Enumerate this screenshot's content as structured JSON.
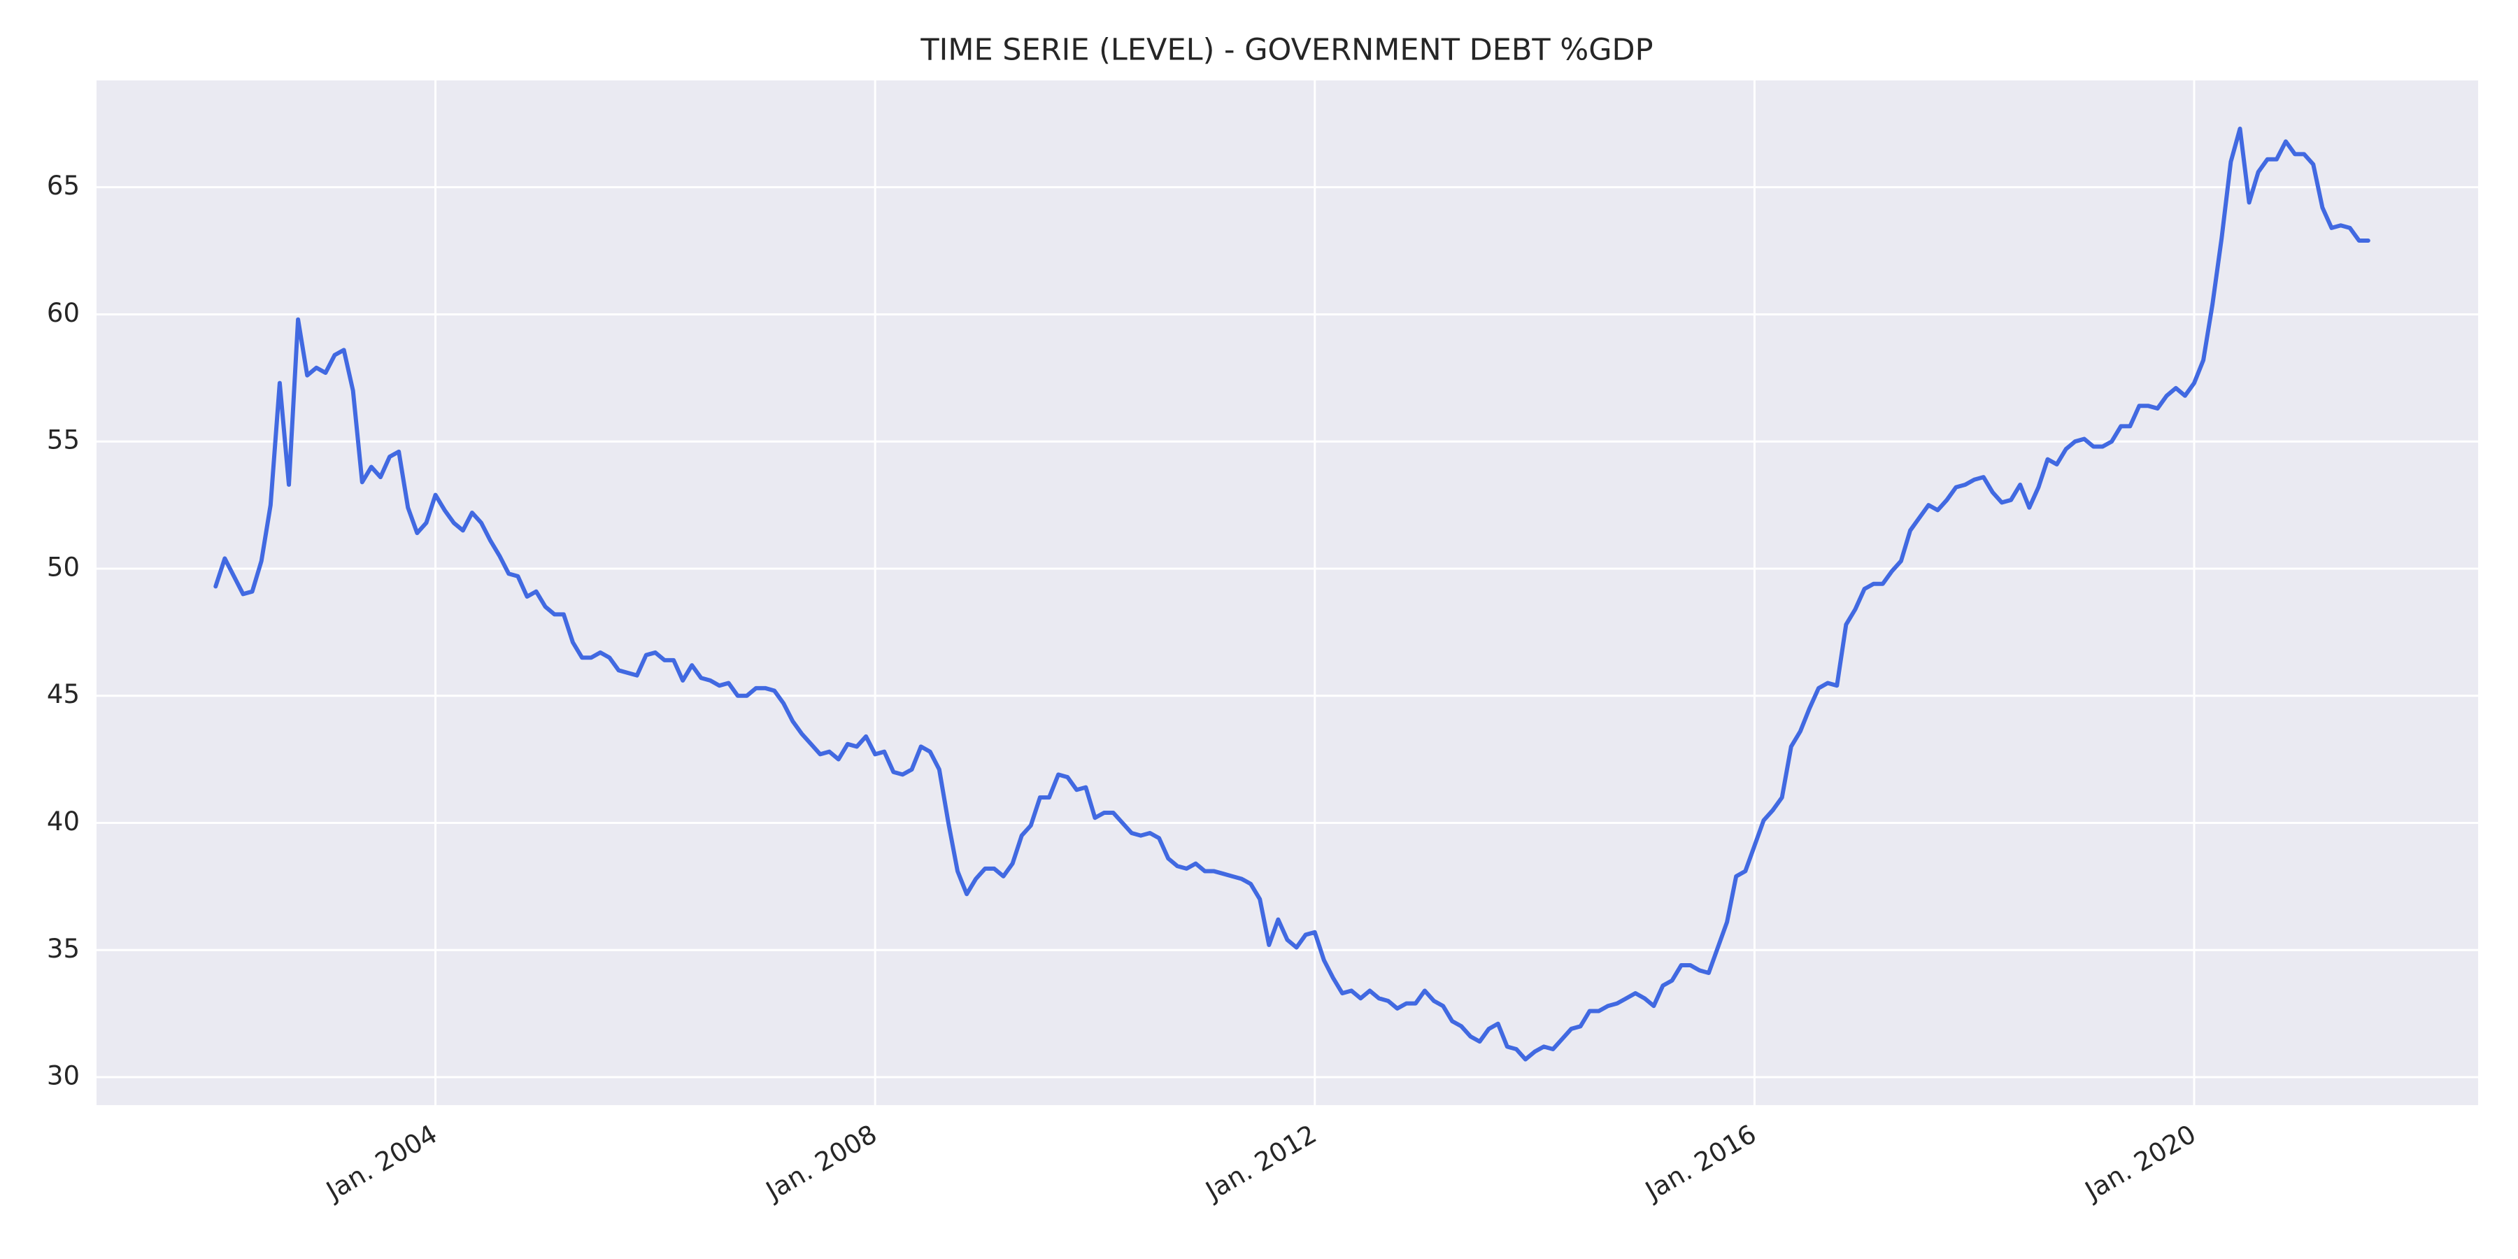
{
  "chart_data": {
    "type": "line",
    "title": "TIME SERIE (LEVEL) - GOVERNMENT DEBT %GDP",
    "color": "#4169e1",
    "grid": true,
    "xlim": [
      "2000-12",
      "2022-08"
    ],
    "ylim": [
      28.9,
      69.2
    ],
    "yticks": [
      30,
      35,
      40,
      45,
      50,
      55,
      60,
      65
    ],
    "xticks": [
      {
        "value": "2004-01",
        "label": "Jan. 2004"
      },
      {
        "value": "2008-01",
        "label": "Jan. 2008"
      },
      {
        "value": "2012-01",
        "label": "Jan. 2012"
      },
      {
        "value": "2016-01",
        "label": "Jan. 2016"
      },
      {
        "value": "2020-01",
        "label": "Jan. 2020"
      }
    ],
    "x": [
      "2002-01",
      "2002-02",
      "2002-03",
      "2002-04",
      "2002-05",
      "2002-06",
      "2002-07",
      "2002-08",
      "2002-09",
      "2002-10",
      "2002-11",
      "2002-12",
      "2003-01",
      "2003-02",
      "2003-03",
      "2003-04",
      "2003-05",
      "2003-06",
      "2003-07",
      "2003-08",
      "2003-09",
      "2003-10",
      "2003-11",
      "2003-12",
      "2004-01",
      "2004-02",
      "2004-03",
      "2004-04",
      "2004-05",
      "2004-06",
      "2004-07",
      "2004-08",
      "2004-09",
      "2004-10",
      "2004-11",
      "2004-12",
      "2005-01",
      "2005-02",
      "2005-03",
      "2005-04",
      "2005-05",
      "2005-06",
      "2005-07",
      "2005-08",
      "2005-09",
      "2005-10",
      "2005-11",
      "2005-12",
      "2006-01",
      "2006-02",
      "2006-03",
      "2006-04",
      "2006-05",
      "2006-06",
      "2006-07",
      "2006-08",
      "2006-09",
      "2006-10",
      "2006-11",
      "2006-12",
      "2007-01",
      "2007-02",
      "2007-03",
      "2007-04",
      "2007-05",
      "2007-06",
      "2007-07",
      "2007-08",
      "2007-09",
      "2007-10",
      "2007-11",
      "2007-12",
      "2008-01",
      "2008-02",
      "2008-03",
      "2008-04",
      "2008-05",
      "2008-06",
      "2008-07",
      "2008-08",
      "2008-09",
      "2008-10",
      "2008-11",
      "2008-12",
      "2009-01",
      "2009-02",
      "2009-03",
      "2009-04",
      "2009-05",
      "2009-06",
      "2009-07",
      "2009-08",
      "2009-09",
      "2009-10",
      "2009-11",
      "2009-12",
      "2010-01",
      "2010-02",
      "2010-03",
      "2010-04",
      "2010-05",
      "2010-06",
      "2010-07",
      "2010-08",
      "2010-09",
      "2010-10",
      "2010-11",
      "2010-12",
      "2011-01",
      "2011-02",
      "2011-03",
      "2011-04",
      "2011-05",
      "2011-06",
      "2011-07",
      "2011-08",
      "2011-09",
      "2011-10",
      "2011-11",
      "2011-12",
      "2012-01",
      "2012-02",
      "2012-03",
      "2012-04",
      "2012-05",
      "2012-06",
      "2012-07",
      "2012-08",
      "2012-09",
      "2012-10",
      "2012-11",
      "2012-12",
      "2013-01",
      "2013-02",
      "2013-03",
      "2013-04",
      "2013-05",
      "2013-06",
      "2013-07",
      "2013-08",
      "2013-09",
      "2013-10",
      "2013-11",
      "2013-12",
      "2014-01",
      "2014-02",
      "2014-03",
      "2014-04",
      "2014-05",
      "2014-06",
      "2014-07",
      "2014-08",
      "2014-09",
      "2014-10",
      "2014-11",
      "2014-12",
      "2015-01",
      "2015-02",
      "2015-03",
      "2015-04",
      "2015-05",
      "2015-06",
      "2015-07",
      "2015-08",
      "2015-09",
      "2015-10",
      "2015-11",
      "2015-12",
      "2016-01",
      "2016-02",
      "2016-03",
      "2016-04",
      "2016-05",
      "2016-06",
      "2016-07",
      "2016-08",
      "2016-09",
      "2016-10",
      "2016-11",
      "2016-12",
      "2017-01",
      "2017-02",
      "2017-03",
      "2017-04",
      "2017-05",
      "2017-06",
      "2017-07",
      "2017-08",
      "2017-09",
      "2017-10",
      "2017-11",
      "2017-12",
      "2018-01",
      "2018-02",
      "2018-03",
      "2018-04",
      "2018-05",
      "2018-06",
      "2018-07",
      "2018-08",
      "2018-09",
      "2018-10",
      "2018-11",
      "2018-12",
      "2019-01",
      "2019-02",
      "2019-03",
      "2019-04",
      "2019-05",
      "2019-06",
      "2019-07",
      "2019-08",
      "2019-09",
      "2019-10",
      "2019-11",
      "2019-12",
      "2020-01",
      "2020-02",
      "2020-03",
      "2020-04",
      "2020-05",
      "2020-06",
      "2020-07",
      "2020-08",
      "2020-09",
      "2020-10",
      "2020-11",
      "2020-12",
      "2021-01",
      "2021-02",
      "2021-03",
      "2021-04",
      "2021-05",
      "2021-06",
      "2021-07",
      "2021-08"
    ],
    "values": [
      49.3,
      50.4,
      49.7,
      49.0,
      49.1,
      50.3,
      52.5,
      57.3,
      53.3,
      59.8,
      57.6,
      57.9,
      57.7,
      58.4,
      58.6,
      57.0,
      53.4,
      54.0,
      53.6,
      54.4,
      54.6,
      52.4,
      51.4,
      51.8,
      52.9,
      52.3,
      51.8,
      51.5,
      52.2,
      51.8,
      51.1,
      50.5,
      49.8,
      49.7,
      48.9,
      49.1,
      48.5,
      48.2,
      48.2,
      47.1,
      46.5,
      46.5,
      46.7,
      46.5,
      46.0,
      45.9,
      45.8,
      46.6,
      46.7,
      46.4,
      46.4,
      45.6,
      46.2,
      45.7,
      45.6,
      45.4,
      45.5,
      45.0,
      45.0,
      45.3,
      45.3,
      45.2,
      44.7,
      44.0,
      43.5,
      43.1,
      42.7,
      42.8,
      42.5,
      43.1,
      43.0,
      43.4,
      42.7,
      42.8,
      42.0,
      41.9,
      42.1,
      43.0,
      42.8,
      42.1,
      40.0,
      38.1,
      37.2,
      37.8,
      38.2,
      38.2,
      37.9,
      38.4,
      39.5,
      39.9,
      41.0,
      41.0,
      41.9,
      41.8,
      41.3,
      41.4,
      40.2,
      40.4,
      40.4,
      40.0,
      39.6,
      39.5,
      39.6,
      39.4,
      38.6,
      38.3,
      38.2,
      38.4,
      38.1,
      38.1,
      38.0,
      37.9,
      37.8,
      37.6,
      37.0,
      35.2,
      36.2,
      35.4,
      35.1,
      35.6,
      35.7,
      34.6,
      33.9,
      33.3,
      33.4,
      33.1,
      33.4,
      33.1,
      33.0,
      32.7,
      32.9,
      32.9,
      33.4,
      33.0,
      32.8,
      32.2,
      32.0,
      31.6,
      31.4,
      31.9,
      32.1,
      31.2,
      31.1,
      30.7,
      31.0,
      31.2,
      31.1,
      31.5,
      31.9,
      32.0,
      32.6,
      32.6,
      32.8,
      32.9,
      33.1,
      33.3,
      33.1,
      32.8,
      33.6,
      33.8,
      34.4,
      34.4,
      34.2,
      34.1,
      35.1,
      36.1,
      37.9,
      38.1,
      39.1,
      40.1,
      40.5,
      41.0,
      43.0,
      43.6,
      44.5,
      45.3,
      45.5,
      45.4,
      47.8,
      48.4,
      49.2,
      49.4,
      49.4,
      49.9,
      50.3,
      51.5,
      52.0,
      52.5,
      52.3,
      52.7,
      53.2,
      53.3,
      53.5,
      53.6,
      53.0,
      52.6,
      52.7,
      53.3,
      52.4,
      53.2,
      54.3,
      54.1,
      54.7,
      55.0,
      55.1,
      54.8,
      54.8,
      55.0,
      55.6,
      55.6,
      56.4,
      56.4,
      56.3,
      56.8,
      57.1,
      56.8,
      57.3,
      58.2,
      60.4,
      63.0,
      66.0,
      67.3,
      64.4,
      65.6,
      66.1,
      66.1,
      66.8,
      66.3,
      66.3,
      65.9,
      64.2,
      63.4,
      63.5,
      63.4,
      62.9,
      62.9
    ]
  }
}
